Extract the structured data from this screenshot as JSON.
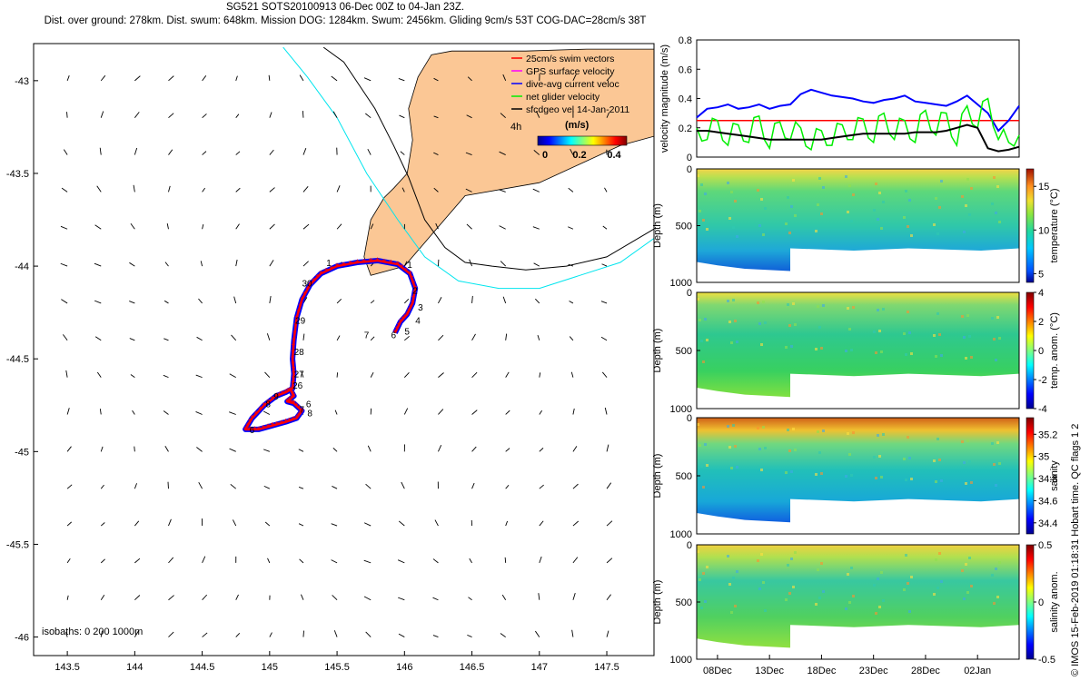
{
  "header": {
    "line1": "SG521 SOTS20100913 06-Dec 00Z to 04-Jan 23Z.",
    "line2": "Dist. over ground: 278km. Dist. swum: 648km. Mission DOG: 1284km. Swum: 2456km. Gliding 9cm/s 53T COG-DAC=28cm/s 38T"
  },
  "credit": "© IMOS 15-Feb-2019 01:18:31 Hobart time. QC flags 1  2",
  "colors": {
    "land": "#fbc795",
    "red": "#ff0000",
    "blue": "#0000ff",
    "green": "#00ee00",
    "cyan": "#00e5ee",
    "magenta": "#ff00ff",
    "black": "#000000"
  },
  "chart_data": [
    {
      "type": "scatter",
      "name": "map",
      "xlim": [
        143.25,
        147.85
      ],
      "ylim": [
        -46.1,
        -42.8
      ],
      "xticks": [
        143.5,
        144,
        144.5,
        145,
        145.5,
        146,
        146.5,
        147,
        147.5
      ],
      "xtick_labels": [
        "143.5",
        "144",
        "144.5",
        "145",
        "145.5",
        "146",
        "146.5",
        "147",
        "147.5"
      ],
      "yticks": [
        -43,
        -43.5,
        -44,
        -44.5,
        -45,
        -45.5,
        -46
      ],
      "ytick_labels": [
        "-43",
        "-43.5",
        "-44",
        "-44.5",
        "-45",
        "-45.5",
        "-46"
      ],
      "legend": {
        "entries": [
          {
            "label": "25cm/s swim vectors",
            "color": "#ff0000"
          },
          {
            "label": "GPS surface velocity",
            "color": "#ff00ff"
          },
          {
            "label": "dive-avg current veloc",
            "color": "#0000ff"
          },
          {
            "label": "net glider velocity",
            "color": "#00ee00"
          },
          {
            "label": "sfcdgeo vel 14-Jan-2011",
            "color": "#000000"
          }
        ],
        "extra": "4h",
        "colorbar_title": "(m/s)",
        "colorbar_ticks": [
          "0",
          "0.2",
          "0.4"
        ]
      },
      "isobath_note": "isobaths: 0   200  1000m",
      "coastline": [
        [
          147.85,
          -42.83
        ],
        [
          147.35,
          -42.83
        ],
        [
          146.9,
          -42.84
        ],
        [
          146.35,
          -42.84
        ],
        [
          146.2,
          -42.86
        ],
        [
          146.1,
          -42.98
        ],
        [
          146.03,
          -43.15
        ],
        [
          146.06,
          -43.32
        ],
        [
          146.02,
          -43.5
        ],
        [
          145.92,
          -43.58
        ],
        [
          145.85,
          -43.63
        ],
        [
          145.75,
          -43.75
        ],
        [
          145.7,
          -43.95
        ],
        [
          145.75,
          -44.05
        ],
        [
          146.0,
          -44.0
        ],
        [
          146.45,
          -43.62
        ],
        [
          147.0,
          -43.55
        ],
        [
          147.6,
          -43.35
        ],
        [
          147.85,
          -43.3
        ]
      ],
      "isobath_1000m": [
        [
          145.4,
          -42.82
        ],
        [
          145.55,
          -42.9
        ],
        [
          145.78,
          -43.15
        ],
        [
          145.92,
          -43.35
        ],
        [
          146.03,
          -43.52
        ],
        [
          146.15,
          -43.75
        ],
        [
          146.3,
          -43.9
        ],
        [
          146.45,
          -43.98
        ],
        [
          146.65,
          -44.0
        ],
        [
          146.9,
          -44.02
        ],
        [
          147.2,
          -44.0
        ],
        [
          147.5,
          -43.95
        ],
        [
          147.85,
          -43.8
        ]
      ],
      "isobath_200m": [
        [
          145.1,
          -42.82
        ],
        [
          145.28,
          -42.98
        ],
        [
          145.5,
          -43.2
        ],
        [
          145.72,
          -43.5
        ],
        [
          145.95,
          -43.75
        ],
        [
          146.15,
          -43.95
        ],
        [
          146.4,
          -44.08
        ],
        [
          146.7,
          -44.12
        ],
        [
          147.0,
          -44.12
        ],
        [
          147.3,
          -44.05
        ],
        [
          147.6,
          -43.98
        ],
        [
          147.85,
          -43.85
        ]
      ],
      "track": [
        [
          145.93,
          -44.36
        ],
        [
          145.97,
          -44.3
        ],
        [
          146.02,
          -44.26
        ],
        [
          146.06,
          -44.2
        ],
        [
          146.08,
          -44.12
        ],
        [
          146.04,
          -44.04
        ],
        [
          145.95,
          -43.99
        ],
        [
          145.8,
          -43.97
        ],
        [
          145.65,
          -43.98
        ],
        [
          145.5,
          -44.0
        ],
        [
          145.38,
          -44.04
        ],
        [
          145.3,
          -44.1
        ],
        [
          145.24,
          -44.18
        ],
        [
          145.2,
          -44.28
        ],
        [
          145.18,
          -44.4
        ],
        [
          145.17,
          -44.5
        ],
        [
          145.18,
          -44.58
        ],
        [
          145.17,
          -44.66
        ],
        [
          145.12,
          -44.68
        ],
        [
          145.05,
          -44.7
        ],
        [
          144.96,
          -44.75
        ],
        [
          144.87,
          -44.82
        ],
        [
          144.82,
          -44.88
        ],
        [
          144.92,
          -44.88
        ],
        [
          145.02,
          -44.86
        ],
        [
          145.12,
          -44.84
        ],
        [
          145.2,
          -44.82
        ],
        [
          145.24,
          -44.78
        ],
        [
          145.18,
          -44.74
        ],
        [
          145.13,
          -44.73
        ],
        [
          145.18,
          -44.7
        ],
        [
          145.15,
          -44.66
        ]
      ],
      "labels": [
        {
          "text": "1",
          "lon": 146.02,
          "lat": -44.01
        },
        {
          "text": "2",
          "lon": 146.06,
          "lat": -44.15
        },
        {
          "text": "3",
          "lon": 146.1,
          "lat": -44.24
        },
        {
          "text": "4",
          "lon": 146.08,
          "lat": -44.31
        },
        {
          "text": "5",
          "lon": 146.0,
          "lat": -44.37
        },
        {
          "text": "6",
          "lon": 145.9,
          "lat": -44.39
        },
        {
          "text": "7",
          "lon": 145.7,
          "lat": -44.39
        },
        {
          "text": "1",
          "lon": 145.42,
          "lat": -44.0
        },
        {
          "text": "30",
          "lon": 145.24,
          "lat": -44.11
        },
        {
          "text": "29",
          "lon": 145.19,
          "lat": -44.31
        },
        {
          "text": "28",
          "lon": 145.18,
          "lat": -44.48
        },
        {
          "text": "27",
          "lon": 145.18,
          "lat": -44.6
        },
        {
          "text": "26",
          "lon": 145.17,
          "lat": -44.66
        },
        {
          "text": "9",
          "lon": 145.03,
          "lat": -44.72
        },
        {
          "text": "8",
          "lon": 144.97,
          "lat": -44.76
        },
        {
          "text": "6",
          "lon": 145.27,
          "lat": -44.76
        },
        {
          "text": "7",
          "lon": 145.22,
          "lat": -44.79
        },
        {
          "text": "8",
          "lon": 145.28,
          "lat": -44.81
        },
        {
          "text": "6",
          "lon": 144.85,
          "lat": -44.9
        }
      ]
    },
    {
      "type": "line",
      "name": "velocity magnitude",
      "ylabel": "velocity magnitude (m/s)",
      "xlim": [
        0,
        31
      ],
      "ylim": [
        0,
        0.8
      ],
      "yticks": [
        0,
        0.2,
        0.4,
        0.6,
        0.8
      ],
      "ytick_labels": [
        "0",
        "0.2",
        "0.4",
        "0.6",
        "0.8"
      ],
      "x": [
        0,
        1,
        2,
        3,
        4,
        5,
        6,
        7,
        8,
        9,
        10,
        11,
        12,
        13,
        14,
        15,
        16,
        17,
        18,
        19,
        20,
        21,
        22,
        23,
        24,
        25,
        26,
        27,
        28,
        29,
        30,
        31
      ],
      "series": [
        {
          "name": "swim 25cm/s",
          "color": "#ff0000",
          "values": [
            0.25,
            0.25,
            0.25,
            0.25,
            0.25,
            0.25,
            0.25,
            0.25,
            0.25,
            0.25,
            0.25,
            0.25,
            0.25,
            0.25,
            0.25,
            0.25,
            0.25,
            0.25,
            0.25,
            0.25,
            0.25,
            0.25,
            0.25,
            0.25,
            0.25,
            0.25,
            0.25,
            0.25,
            0.25,
            0.25,
            0.25,
            0.25
          ]
        },
        {
          "name": "dive-avg current",
          "color": "#0000ff",
          "values": [
            0.27,
            0.33,
            0.34,
            0.36,
            0.33,
            0.34,
            0.36,
            0.33,
            0.35,
            0.36,
            0.43,
            0.46,
            0.44,
            0.42,
            0.41,
            0.4,
            0.38,
            0.37,
            0.39,
            0.4,
            0.42,
            0.38,
            0.37,
            0.36,
            0.35,
            0.38,
            0.42,
            0.36,
            0.3,
            0.18,
            0.25,
            0.35
          ]
        },
        {
          "name": "net glider",
          "color": "#00ee00",
          "values": [
            0.2,
            0.12,
            0.25,
            0.08,
            0.22,
            0.1,
            0.28,
            0.06,
            0.24,
            0.12,
            0.2,
            0.05,
            0.18,
            0.08,
            0.22,
            0.12,
            0.26,
            0.1,
            0.3,
            0.12,
            0.25,
            0.1,
            0.32,
            0.15,
            0.3,
            0.08,
            0.35,
            0.2,
            0.4,
            0.12,
            0.1,
            0.15
          ]
        },
        {
          "name": "dive-avg smooth",
          "color": "#000000",
          "values": [
            0.18,
            0.18,
            0.17,
            0.16,
            0.15,
            0.14,
            0.13,
            0.12,
            0.12,
            0.12,
            0.12,
            0.12,
            0.12,
            0.13,
            0.14,
            0.15,
            0.16,
            0.16,
            0.16,
            0.16,
            0.16,
            0.17,
            0.17,
            0.17,
            0.18,
            0.2,
            0.22,
            0.2,
            0.06,
            0.04,
            0.05,
            0.07
          ]
        }
      ]
    },
    {
      "type": "heatmap",
      "name": "temperature",
      "ylabel": "Depth (m)",
      "colorbar_label": "temperature (°C)",
      "ylim": [
        1000,
        0
      ],
      "yticks": [
        0,
        500,
        1000
      ],
      "ytick_labels": [
        "0",
        "500",
        "1000"
      ],
      "clim": [
        4,
        17
      ],
      "colorbar_ticks": [
        5,
        10,
        15
      ],
      "colorbar_tick_labels": [
        "5",
        "10",
        "15"
      ]
    },
    {
      "type": "heatmap",
      "name": "temperature anomaly",
      "ylabel": "Depth (m)",
      "colorbar_label": "temp. anom. (°C)",
      "ylim": [
        1000,
        0
      ],
      "yticks": [
        0,
        500,
        1000
      ],
      "ytick_labels": [
        "0",
        "500",
        "1000"
      ],
      "clim": [
        -4,
        4
      ],
      "colorbar_ticks": [
        -4,
        -2,
        0,
        2,
        4
      ],
      "colorbar_tick_labels": [
        "-4",
        "-2",
        "0",
        "2",
        "4"
      ]
    },
    {
      "type": "heatmap",
      "name": "salinity",
      "ylabel": "Depth (m)",
      "colorbar_label": "salinity",
      "ylim": [
        1000,
        0
      ],
      "yticks": [
        0,
        500,
        1000
      ],
      "ytick_labels": [
        "0",
        "500",
        "1000"
      ],
      "clim": [
        34.3,
        35.35
      ],
      "colorbar_ticks": [
        34.4,
        34.6,
        34.8,
        35,
        35.2
      ],
      "colorbar_tick_labels": [
        "34.4",
        "34.6",
        "34.8",
        "35",
        "35.2"
      ]
    },
    {
      "type": "heatmap",
      "name": "salinity anomaly",
      "ylabel": "Depth (m)",
      "colorbar_label": "salinity anom.",
      "ylim": [
        1000,
        0
      ],
      "yticks": [
        0,
        500,
        1000
      ],
      "ytick_labels": [
        "0",
        "500",
        "1000"
      ],
      "clim": [
        -0.5,
        0.5
      ],
      "colorbar_ticks": [
        -0.5,
        0,
        0.5
      ],
      "colorbar_tick_labels": [
        "-0.5",
        "0",
        "0.5"
      ],
      "x_dates": [
        "08Dec",
        "13Dec",
        "18Dec",
        "23Dec",
        "28Dec",
        "02Jan"
      ],
      "x_date_days": [
        2,
        7,
        12,
        17,
        22,
        27
      ]
    }
  ]
}
